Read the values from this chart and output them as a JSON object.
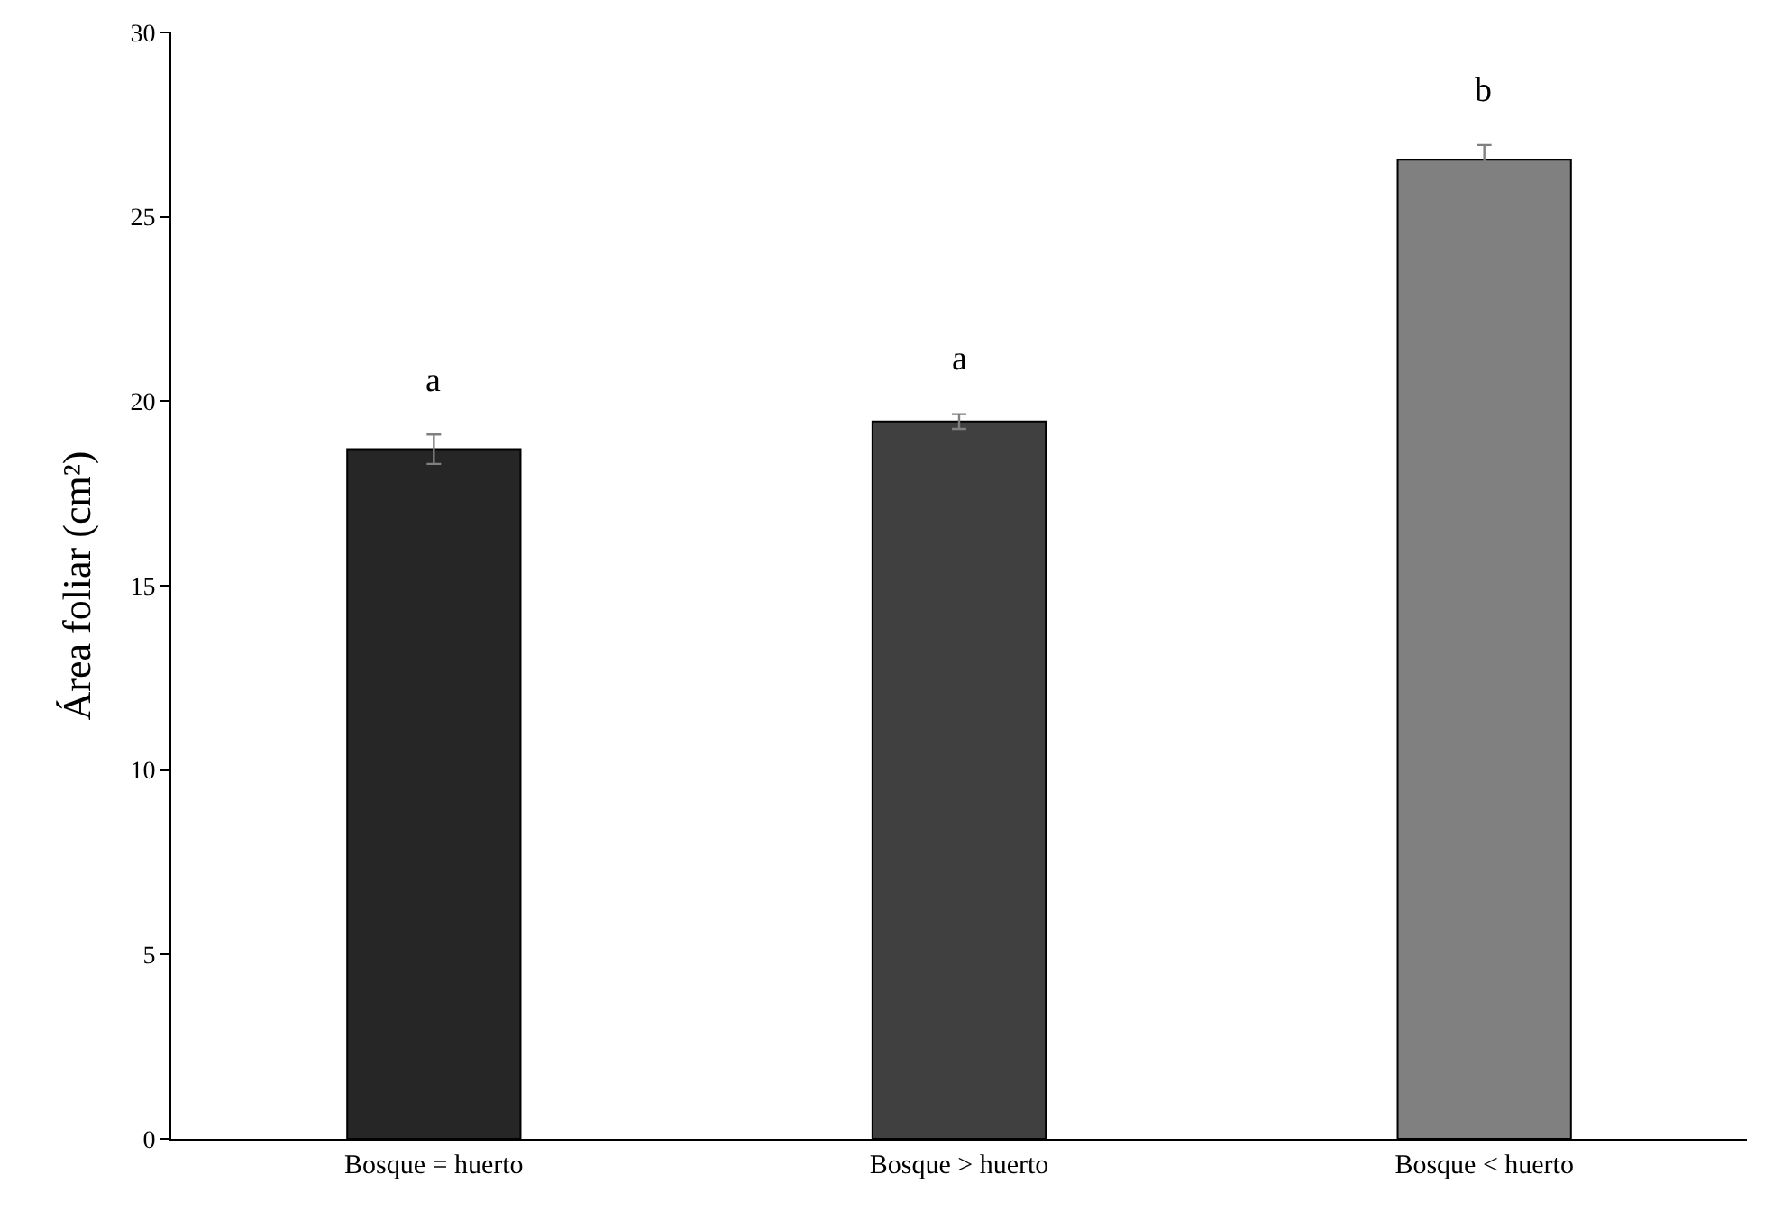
{
  "chart_data": {
    "type": "bar",
    "ylabel": "Área foliar (cm²)",
    "categories": [
      "Bosque = huerto",
      "Bosque > huerto",
      "Bosque < huerto"
    ],
    "values": [
      18.7,
      19.45,
      26.55
    ],
    "errors": [
      0.4,
      0.2,
      0.4
    ],
    "colors": [
      "#262626",
      "#404040",
      "#808080"
    ],
    "ylim": [
      0,
      30
    ],
    "yticks": [
      0,
      5,
      10,
      15,
      20,
      25,
      30
    ],
    "annotations": [
      "a",
      "a",
      "b"
    ]
  }
}
